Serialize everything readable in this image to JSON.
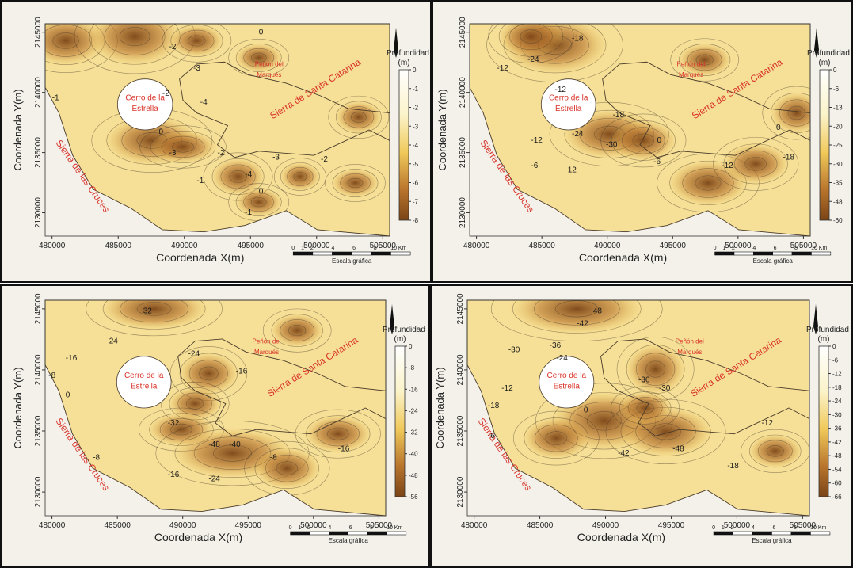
{
  "figure": {
    "x_axis_label": "Coordenada X(m)",
    "y_axis_label": "Coordenada Y(m)",
    "x_ticks": [
      "480000",
      "485000",
      "490000",
      "495000",
      "500000",
      "505000"
    ],
    "y_ticks": [
      "2145000",
      "2140000",
      "2135000",
      "2130000"
    ],
    "legend_title": "Profundidad",
    "legend_unit": "(m)",
    "scale_label": "Escala gráfica",
    "scale_ticks": [
      "0",
      "1",
      "2",
      "4",
      "6",
      "8",
      "10 Km"
    ],
    "place_labels": {
      "cerro_line1": "Cerro de la",
      "cerro_line2": "Estrella",
      "penon_line1": "Peñón del",
      "penon_line2": "Marqués",
      "santa_catarina": "Sierra de Santa Catarina",
      "cruces": "Sierra de las Cruces"
    },
    "colors": {
      "light": "#fbf3c9",
      "mid": "#f0c95a",
      "dark": "#7a4416",
      "label_red": "#d8342a"
    }
  },
  "panels": [
    {
      "legend_ticks": [
        "0",
        "-1",
        "-2",
        "-3",
        "-4",
        "-5",
        "-6",
        "-7",
        "-8"
      ],
      "contour_labels": [
        "0",
        "-1",
        "-2",
        "-3",
        "-4",
        "-2",
        "0",
        "-3",
        "-2",
        "-1",
        "-4",
        "-3",
        "-2",
        "0",
        "-1"
      ]
    },
    {
      "legend_ticks": [
        "0",
        "-6",
        "-13",
        "-20",
        "-25",
        "-30",
        "-35",
        "-48",
        "-60"
      ],
      "contour_labels": [
        "-18",
        "-24",
        "-12",
        "-12",
        "-18",
        "-24",
        "-12",
        "0",
        "-6",
        "-12",
        "-18",
        "-6",
        "-12",
        "0",
        "-30"
      ]
    },
    {
      "legend_ticks": [
        "0",
        "-8",
        "-16",
        "-24",
        "-32",
        "-40",
        "-48",
        "-56"
      ],
      "contour_labels": [
        "-32",
        "-24",
        "-16",
        "-8",
        "0",
        "-24",
        "-16",
        "-8",
        "-32",
        "-48",
        "-40",
        "-16",
        "-24",
        "-8",
        "-16"
      ]
    },
    {
      "legend_ticks": [
        "0",
        "-6",
        "-12",
        "-18",
        "-24",
        "-30",
        "-36",
        "-42",
        "-48",
        "-54",
        "-60",
        "-66"
      ],
      "contour_labels": [
        "-48",
        "-42",
        "-36",
        "-30",
        "-24",
        "-18",
        "-12",
        "-6",
        "0",
        "-36",
        "-30",
        "-42",
        "-48",
        "-12",
        "-18"
      ]
    }
  ]
}
